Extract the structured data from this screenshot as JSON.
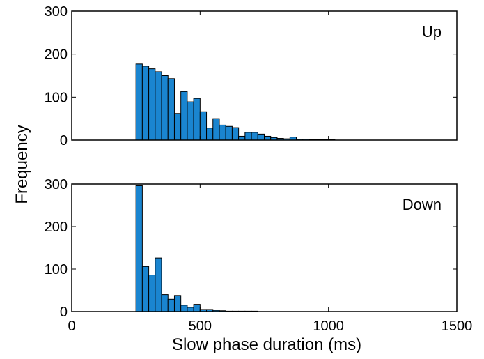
{
  "chart_data": [
    {
      "type": "bar",
      "panel_label": "Up",
      "bin_width_ms": 25,
      "x": [
        250,
        275,
        300,
        325,
        350,
        375,
        400,
        425,
        450,
        475,
        500,
        525,
        550,
        575,
        600,
        625,
        650,
        675,
        700,
        725,
        750,
        775,
        800,
        825,
        850,
        875,
        900,
        925,
        950,
        975,
        1000
      ],
      "values": [
        177,
        172,
        166,
        159,
        150,
        143,
        62,
        113,
        89,
        97,
        66,
        28,
        50,
        35,
        32,
        29,
        9,
        18,
        18,
        14,
        9,
        6,
        4,
        3,
        7,
        2,
        2,
        1,
        1,
        1,
        1
      ],
      "xlim": [
        0,
        1500
      ],
      "ylim": [
        0,
        300
      ],
      "yticks": [
        "0",
        "100",
        "200",
        "300"
      ],
      "color": "#1a85d0"
    },
    {
      "type": "bar",
      "panel_label": "Down",
      "bin_width_ms": 25,
      "x": [
        250,
        275,
        300,
        325,
        350,
        375,
        400,
        425,
        450,
        475,
        500,
        525,
        550,
        575,
        600,
        625,
        650,
        675,
        700
      ],
      "values": [
        296,
        106,
        86,
        126,
        40,
        29,
        38,
        15,
        10,
        17,
        5,
        5,
        3,
        2,
        1,
        1,
        1,
        1,
        1
      ],
      "xlim": [
        0,
        1500
      ],
      "ylim": [
        0,
        300
      ],
      "yticks": [
        "0",
        "100",
        "200",
        "300"
      ],
      "xticks": [
        "0",
        "500",
        "1000",
        "1500"
      ],
      "color": "#1a85d0"
    }
  ],
  "axes": {
    "ylabel": "Frequency",
    "xlabel": "Slow phase duration (ms)"
  }
}
